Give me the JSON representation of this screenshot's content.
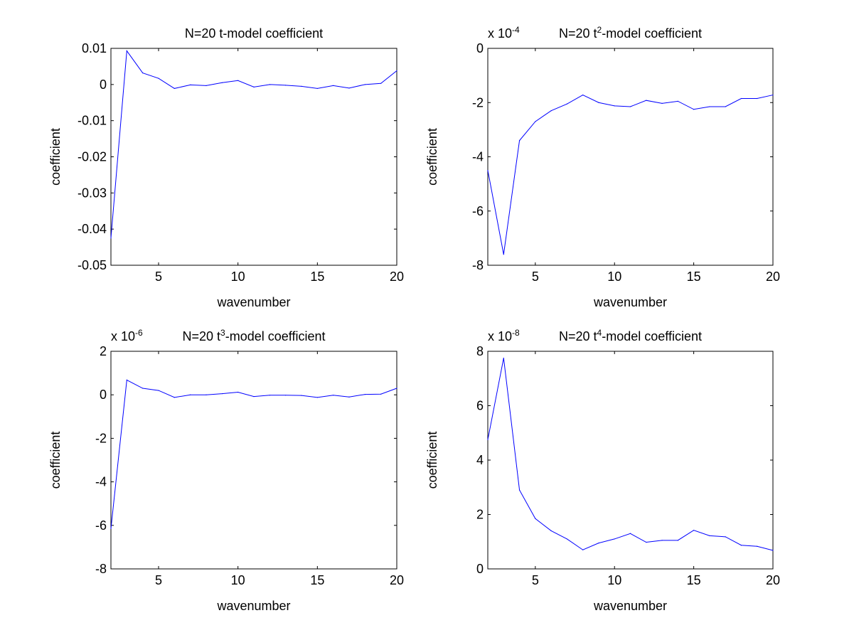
{
  "chart_data": [
    {
      "type": "line",
      "title": "N=20 t-model coefficient",
      "title_base": "N=20 t",
      "title_sup": "",
      "title_tail": "-model coefficient",
      "exponent_label": "",
      "exponent_sup": "",
      "xlabel": "wavenumber",
      "ylabel": "coefficient",
      "xlim": [
        2,
        20
      ],
      "ylim": [
        -0.05,
        0.01
      ],
      "xticks": [
        5,
        10,
        15,
        20
      ],
      "yticks": [
        -0.05,
        -0.04,
        -0.03,
        -0.02,
        -0.01,
        0,
        0.01
      ],
      "ytick_labels": [
        "-0.05",
        "-0.04",
        "-0.03",
        "-0.02",
        "-0.01",
        "0",
        "0.01"
      ],
      "line_color": "#0000ff",
      "grid": false,
      "x": [
        2,
        3,
        4,
        5,
        6,
        7,
        8,
        9,
        10,
        11,
        12,
        13,
        14,
        15,
        16,
        17,
        18,
        19,
        20
      ],
      "y": [
        -0.0425,
        0.0093,
        0.0032,
        0.0017,
        -0.0011,
        -0.0001,
        -0.0003,
        0.0005,
        0.0011,
        -0.0007,
        0.0,
        -0.0002,
        -0.0005,
        -0.0011,
        -0.0003,
        -0.001,
        0.0,
        0.0003,
        0.0038
      ]
    },
    {
      "type": "line",
      "title": "N=20 t2-model coefficient",
      "title_base": "N=20 t",
      "title_sup": "2",
      "title_tail": "-model coefficient",
      "exponent_label": "x 10",
      "exponent_sup": "-4",
      "xlabel": "wavenumber",
      "ylabel": "coefficient",
      "xlim": [
        2,
        20
      ],
      "ylim": [
        -8,
        0
      ],
      "xticks": [
        5,
        10,
        15,
        20
      ],
      "yticks": [
        -8,
        -6,
        -4,
        -2,
        0
      ],
      "ytick_labels": [
        "-8",
        "-6",
        "-4",
        "-2",
        "0"
      ],
      "line_color": "#0000ff",
      "grid": false,
      "x": [
        2,
        3,
        4,
        5,
        6,
        7,
        8,
        9,
        10,
        11,
        12,
        13,
        14,
        15,
        16,
        17,
        18,
        19,
        20
      ],
      "y": [
        -4.5,
        -7.6,
        -3.4,
        -2.7,
        -2.3,
        -2.05,
        -1.72,
        -2.0,
        -2.12,
        -2.15,
        -1.92,
        -2.03,
        -1.95,
        -2.25,
        -2.15,
        -2.15,
        -1.85,
        -1.85,
        -1.72
      ]
    },
    {
      "type": "line",
      "title": "N=20 t3-model coefficient",
      "title_base": "N=20 t",
      "title_sup": "3",
      "title_tail": "-model coefficient",
      "exponent_label": "x 10",
      "exponent_sup": "-6",
      "xlabel": "wavenumber",
      "ylabel": "coefficient",
      "xlim": [
        2,
        20
      ],
      "ylim": [
        -8,
        2
      ],
      "xticks": [
        5,
        10,
        15,
        20
      ],
      "yticks": [
        -8,
        -6,
        -4,
        -2,
        0,
        2
      ],
      "ytick_labels": [
        "-8",
        "-6",
        "-4",
        "-2",
        "0",
        "2"
      ],
      "line_color": "#0000ff",
      "grid": false,
      "x": [
        2,
        3,
        4,
        5,
        6,
        7,
        8,
        9,
        10,
        11,
        12,
        13,
        14,
        15,
        16,
        17,
        18,
        19,
        20
      ],
      "y": [
        -6.15,
        0.68,
        0.3,
        0.2,
        -0.12,
        0.0,
        0.0,
        0.05,
        0.12,
        -0.08,
        -0.02,
        -0.02,
        -0.03,
        -0.12,
        -0.02,
        -0.1,
        0.02,
        0.03,
        0.3
      ]
    },
    {
      "type": "line",
      "title": "N=20 t4-model coefficient",
      "title_base": "N=20 t",
      "title_sup": "4",
      "title_tail": "-model coefficient",
      "exponent_label": "x 10",
      "exponent_sup": "-8",
      "xlabel": "wavenumber",
      "ylabel": "coefficient",
      "xlim": [
        2,
        20
      ],
      "ylim": [
        0,
        8
      ],
      "xticks": [
        5,
        10,
        15,
        20
      ],
      "yticks": [
        0,
        2,
        4,
        6,
        8
      ],
      "ytick_labels": [
        "0",
        "2",
        "4",
        "6",
        "8"
      ],
      "line_color": "#0000ff",
      "grid": false,
      "x": [
        2,
        3,
        4,
        5,
        6,
        7,
        8,
        9,
        10,
        11,
        12,
        13,
        14,
        15,
        16,
        17,
        18,
        19,
        20
      ],
      "y": [
        4.75,
        7.75,
        2.9,
        1.85,
        1.4,
        1.1,
        0.7,
        0.95,
        1.1,
        1.3,
        0.98,
        1.05,
        1.05,
        1.42,
        1.22,
        1.18,
        0.87,
        0.83,
        0.68
      ]
    }
  ]
}
